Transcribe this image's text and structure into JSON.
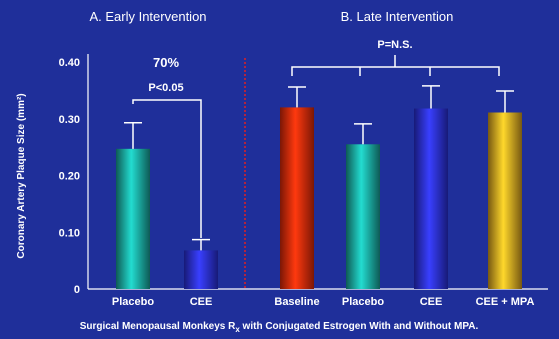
{
  "chart_data": {
    "type": "bar",
    "ylabel": "Coronary Artery Plaque Size (mm²)",
    "ylim": [
      0,
      0.4
    ],
    "y_ticks": [
      "0",
      "0.10",
      "0.20",
      "0.30",
      "0.40"
    ],
    "footnote": {
      "main": "Surgical Menopausal Monkeys R",
      "subscript": "x",
      "rest": " with Conjugated Estrogen With and Without MPA."
    },
    "panels": [
      {
        "title": "A. Early Intervention",
        "categories": [
          "Placebo",
          "CEE"
        ],
        "values": [
          0.247,
          0.068
        ],
        "errors": [
          0.046,
          0.019
        ],
        "colors": [
          "#1aa39a",
          "#2a2fd8"
        ],
        "annotation": {
          "reduction": "70%",
          "significance": "P<0.05"
        }
      },
      {
        "title": "B. Late Intervention",
        "categories": [
          "Baseline",
          "Placebo",
          "CEE",
          "CEE + MPA"
        ],
        "values": [
          0.32,
          0.255,
          0.318,
          0.311
        ],
        "errors": [
          0.036,
          0.036,
          0.04,
          0.038
        ],
        "colors": [
          "#e02a0a",
          "#1aa39a",
          "#2a2fd8",
          "#d8a020"
        ],
        "annotation": {
          "significance": "P=N.S."
        }
      }
    ]
  }
}
